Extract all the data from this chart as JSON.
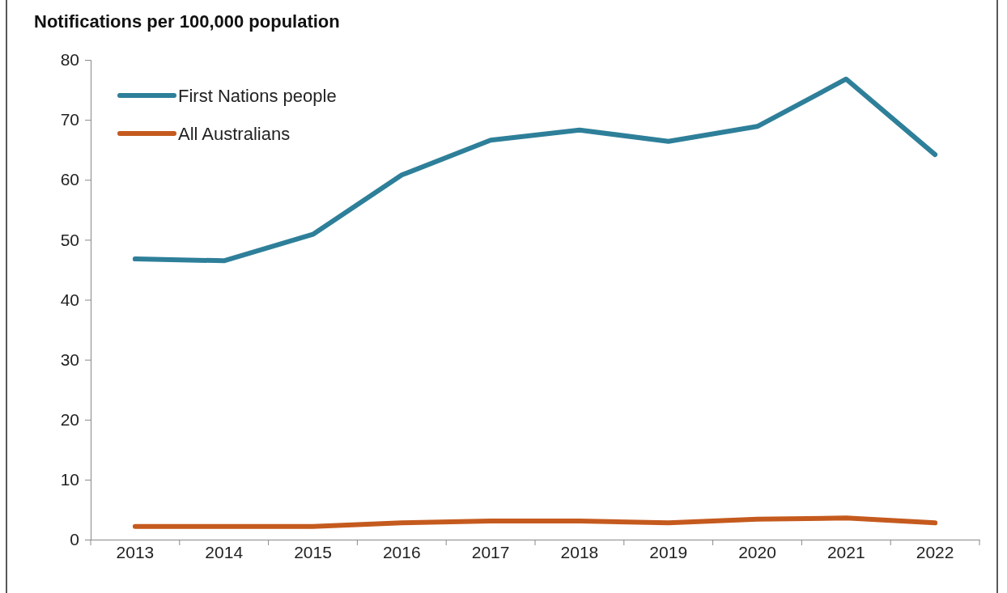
{
  "chart_data": {
    "type": "line",
    "title": "Notifications per 100,000 population",
    "categories": [
      "2013",
      "2014",
      "2015",
      "2016",
      "2017",
      "2018",
      "2019",
      "2020",
      "2021",
      "2022"
    ],
    "series": [
      {
        "name": "First Nations people",
        "color": "#2e7f99",
        "values": [
          46.8,
          46.5,
          50.9,
          60.8,
          66.6,
          68.3,
          66.4,
          68.9,
          76.8,
          64.2
        ]
      },
      {
        "name": "All Australians",
        "color": "#c55a1e",
        "values": [
          2.2,
          2.2,
          2.2,
          2.8,
          3.1,
          3.1,
          2.8,
          3.4,
          3.6,
          2.8
        ]
      }
    ],
    "ylim": [
      0,
      80
    ],
    "yticks": [
      0,
      10,
      20,
      30,
      40,
      50,
      60,
      70,
      80
    ],
    "grid": false,
    "legend": "top left",
    "marker": "none",
    "line_style": "solid"
  }
}
